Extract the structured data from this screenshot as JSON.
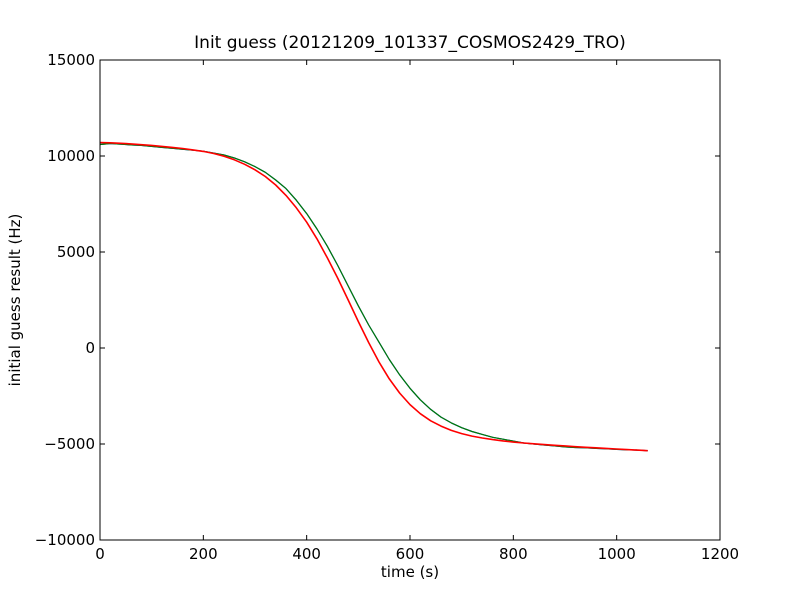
{
  "chart_data": {
    "type": "line",
    "title": "Init guess (20121209_101337_COSMOS2429_TRO)",
    "xlabel": "time (s)",
    "ylabel": "initial guess result (Hz)",
    "xlim": [
      0,
      1200
    ],
    "ylim": [
      -10000,
      15000
    ],
    "xticks": [
      0,
      200,
      400,
      600,
      800,
      1000,
      1200
    ],
    "yticks": [
      -10000,
      -5000,
      0,
      5000,
      10000,
      15000
    ],
    "grid": false,
    "legend": "none",
    "series": [
      {
        "color": "#0000ff",
        "style": "noisy-sawtooth",
        "x": [
          0,
          20,
          40,
          60,
          80,
          100,
          120,
          140,
          160,
          180,
          200,
          220,
          240,
          260,
          280,
          300,
          320,
          340,
          360,
          380,
          400,
          420,
          440,
          460,
          480,
          500,
          520,
          540,
          560,
          580,
          600,
          620,
          640,
          660,
          680,
          700,
          720,
          740,
          760,
          780,
          800,
          820,
          840,
          860,
          880,
          900,
          920,
          940,
          960,
          980,
          1000,
          1020,
          1040,
          1060
        ],
        "y": [
          10600,
          10650,
          10620,
          10580,
          10550,
          10500,
          10450,
          10400,
          10350,
          10300,
          10250,
          10150,
          10050,
          9900,
          9700,
          9450,
          9150,
          8750,
          8300,
          7700,
          7000,
          6200,
          5300,
          4300,
          3250,
          2200,
          1200,
          300,
          -600,
          -1400,
          -2100,
          -2700,
          -3200,
          -3600,
          -3900,
          -4150,
          -4350,
          -4500,
          -4650,
          -4750,
          -4850,
          -4950,
          -5000,
          -5050,
          -5100,
          -5150,
          -5180,
          -5200,
          -5230,
          -5250,
          -5280,
          -5300,
          -5320,
          -5350
        ]
      },
      {
        "color": "#008000",
        "style": "smoothed",
        "x": [
          0,
          20,
          40,
          60,
          80,
          100,
          120,
          140,
          160,
          180,
          200,
          220,
          240,
          260,
          280,
          300,
          320,
          340,
          360,
          380,
          400,
          420,
          440,
          460,
          480,
          500,
          520,
          540,
          560,
          580,
          600,
          620,
          640,
          660,
          680,
          700,
          720,
          740,
          760,
          780,
          800,
          820,
          840,
          860,
          880,
          900,
          920,
          940,
          960,
          980,
          1000,
          1020,
          1040,
          1060
        ],
        "y": [
          10600,
          10650,
          10620,
          10580,
          10550,
          10500,
          10450,
          10400,
          10350,
          10300,
          10250,
          10150,
          10050,
          9900,
          9700,
          9450,
          9150,
          8750,
          8300,
          7700,
          7000,
          6200,
          5300,
          4300,
          3250,
          2200,
          1200,
          300,
          -600,
          -1400,
          -2100,
          -2700,
          -3200,
          -3600,
          -3900,
          -4150,
          -4350,
          -4500,
          -4650,
          -4750,
          -4850,
          -4950,
          -5000,
          -5050,
          -5100,
          -5150,
          -5180,
          -5200,
          -5230,
          -5250,
          -5280,
          -5300,
          -5320,
          -5350
        ]
      },
      {
        "color": "#ff0000",
        "style": "fit",
        "x": [
          0,
          20,
          40,
          60,
          80,
          100,
          120,
          140,
          160,
          180,
          200,
          220,
          240,
          260,
          280,
          300,
          320,
          340,
          360,
          380,
          400,
          420,
          440,
          460,
          480,
          500,
          520,
          540,
          560,
          580,
          600,
          620,
          640,
          660,
          680,
          700,
          720,
          740,
          760,
          780,
          800,
          820,
          840,
          860,
          880,
          900,
          920,
          940,
          960,
          980,
          1000,
          1020,
          1040,
          1060
        ],
        "y": [
          10700,
          10690,
          10660,
          10630,
          10590,
          10550,
          10500,
          10450,
          10390,
          10320,
          10240,
          10130,
          9990,
          9800,
          9570,
          9280,
          8930,
          8490,
          7950,
          7300,
          6550,
          5680,
          4700,
          3640,
          2520,
          1380,
          280,
          -730,
          -1610,
          -2350,
          -2950,
          -3420,
          -3790,
          -4070,
          -4290,
          -4460,
          -4590,
          -4690,
          -4770,
          -4840,
          -4900,
          -4950,
          -4990,
          -5030,
          -5070,
          -5100,
          -5140,
          -5170,
          -5200,
          -5230,
          -5260,
          -5290,
          -5320,
          -5350
        ]
      }
    ]
  }
}
